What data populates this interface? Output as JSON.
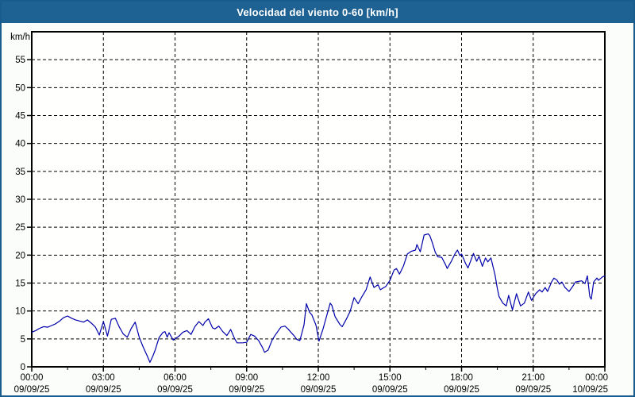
{
  "title_bar": {
    "title": "Velocidad del viento 0-60 [km/h]"
  },
  "colors": {
    "page_border": "#1a5c8e",
    "title_bar_bg": "#1e6293",
    "title_text": "#ffffff",
    "page_bg": "#fafdfa",
    "plot_bg": "#fffffe",
    "axis": "#000000",
    "grid": "#000000",
    "tick_text": "#000000",
    "line": "#0000aa"
  },
  "chart_data": {
    "type": "line",
    "title": "Velocidad del viento 0-60 [km/h]",
    "ylabel": "km/h",
    "xlabel": "",
    "ylim": [
      0,
      60
    ],
    "x_range_hours": 24,
    "grid": "dashed",
    "legend": "none",
    "y_ticks": [
      0,
      5,
      10,
      15,
      20,
      25,
      30,
      35,
      40,
      45,
      50,
      55
    ],
    "x_ticks": [
      {
        "hour": 0,
        "time": "00:00",
        "date": "09/09/25"
      },
      {
        "hour": 3,
        "time": "03:00",
        "date": "09/09/25"
      },
      {
        "hour": 6,
        "time": "06:00",
        "date": "09/09/25"
      },
      {
        "hour": 9,
        "time": "09:00",
        "date": "09/09/25"
      },
      {
        "hour": 12,
        "time": "12:00",
        "date": "09/09/25"
      },
      {
        "hour": 15,
        "time": "15:00",
        "date": "09/09/25"
      },
      {
        "hour": 18,
        "time": "18:00",
        "date": "09/09/25"
      },
      {
        "hour": 21,
        "time": "21:00",
        "date": "09/09/25"
      },
      {
        "hour": 24,
        "time": "00:00",
        "date": "10/09/25"
      }
    ],
    "minor_tick_step_hours": 1.5,
    "series": [
      {
        "name": "Velocidad del viento [km/h]",
        "points": [
          [
            0.0,
            6.2
          ],
          [
            0.17,
            6.5
          ],
          [
            0.33,
            6.9
          ],
          [
            0.5,
            7.2
          ],
          [
            0.67,
            7.1
          ],
          [
            0.83,
            7.4
          ],
          [
            1.0,
            7.7
          ],
          [
            1.17,
            8.2
          ],
          [
            1.33,
            8.8
          ],
          [
            1.5,
            9.1
          ],
          [
            1.67,
            8.7
          ],
          [
            1.83,
            8.4
          ],
          [
            2.0,
            8.2
          ],
          [
            2.17,
            8.0
          ],
          [
            2.33,
            8.4
          ],
          [
            2.5,
            7.8
          ],
          [
            2.67,
            7.1
          ],
          [
            2.83,
            5.7
          ],
          [
            3.0,
            8.1
          ],
          [
            3.17,
            5.5
          ],
          [
            3.33,
            8.5
          ],
          [
            3.5,
            8.7
          ],
          [
            3.67,
            7.1
          ],
          [
            3.83,
            5.9
          ],
          [
            4.0,
            5.3
          ],
          [
            4.17,
            6.9
          ],
          [
            4.33,
            8.0
          ],
          [
            4.5,
            5.3
          ],
          [
            4.67,
            3.5
          ],
          [
            4.83,
            2.0
          ],
          [
            4.95,
            0.8
          ],
          [
            5.08,
            2.0
          ],
          [
            5.17,
            3.0
          ],
          [
            5.33,
            5.2
          ],
          [
            5.5,
            6.2
          ],
          [
            5.58,
            6.3
          ],
          [
            5.67,
            5.3
          ],
          [
            5.75,
            6.1
          ],
          [
            5.92,
            4.8
          ],
          [
            6.0,
            5.0
          ],
          [
            6.17,
            5.5
          ],
          [
            6.33,
            6.2
          ],
          [
            6.5,
            6.5
          ],
          [
            6.67,
            5.8
          ],
          [
            6.83,
            7.2
          ],
          [
            7.0,
            8.1
          ],
          [
            7.17,
            7.4
          ],
          [
            7.25,
            8.0
          ],
          [
            7.4,
            8.6
          ],
          [
            7.57,
            7.0
          ],
          [
            7.67,
            6.8
          ],
          [
            7.83,
            7.3
          ],
          [
            8.0,
            6.3
          ],
          [
            8.17,
            5.6
          ],
          [
            8.33,
            6.7
          ],
          [
            8.5,
            5.0
          ],
          [
            8.6,
            4.3
          ],
          [
            8.83,
            4.3
          ],
          [
            9.0,
            4.4
          ],
          [
            9.17,
            5.8
          ],
          [
            9.33,
            5.5
          ],
          [
            9.5,
            4.7
          ],
          [
            9.67,
            3.4
          ],
          [
            9.75,
            2.6
          ],
          [
            9.9,
            3.0
          ],
          [
            10.07,
            4.8
          ],
          [
            10.17,
            5.5
          ],
          [
            10.33,
            6.5
          ],
          [
            10.43,
            7.1
          ],
          [
            10.6,
            7.3
          ],
          [
            10.73,
            6.8
          ],
          [
            10.83,
            6.3
          ],
          [
            11.0,
            5.5
          ],
          [
            11.1,
            4.9
          ],
          [
            11.23,
            4.7
          ],
          [
            11.4,
            7.5
          ],
          [
            11.5,
            11.3
          ],
          [
            11.63,
            9.8
          ],
          [
            11.73,
            9.3
          ],
          [
            11.9,
            7.5
          ],
          [
            12.03,
            4.6
          ],
          [
            12.2,
            6.8
          ],
          [
            12.33,
            8.8
          ],
          [
            12.5,
            11.4
          ],
          [
            12.57,
            11.0
          ],
          [
            12.7,
            9.0
          ],
          [
            12.9,
            7.6
          ],
          [
            13.0,
            7.2
          ],
          [
            13.17,
            8.5
          ],
          [
            13.33,
            9.9
          ],
          [
            13.5,
            12.4
          ],
          [
            13.67,
            11.3
          ],
          [
            13.83,
            12.6
          ],
          [
            14.0,
            13.8
          ],
          [
            14.17,
            16.1
          ],
          [
            14.33,
            14.2
          ],
          [
            14.5,
            14.7
          ],
          [
            14.6,
            13.8
          ],
          [
            14.83,
            14.4
          ],
          [
            15.0,
            15.5
          ],
          [
            15.17,
            17.3
          ],
          [
            15.27,
            17.6
          ],
          [
            15.4,
            16.6
          ],
          [
            15.57,
            18.1
          ],
          [
            15.73,
            20.2
          ],
          [
            15.9,
            20.7
          ],
          [
            16.07,
            20.9
          ],
          [
            16.13,
            21.9
          ],
          [
            16.27,
            20.6
          ],
          [
            16.43,
            23.6
          ],
          [
            16.6,
            23.8
          ],
          [
            16.67,
            23.5
          ],
          [
            16.77,
            22.3
          ],
          [
            16.9,
            20.5
          ],
          [
            17.0,
            19.7
          ],
          [
            17.17,
            19.6
          ],
          [
            17.33,
            18.3
          ],
          [
            17.4,
            17.6
          ],
          [
            17.57,
            18.9
          ],
          [
            17.73,
            20.3
          ],
          [
            17.83,
            20.9
          ],
          [
            17.93,
            19.9
          ],
          [
            18.0,
            20.2
          ],
          [
            18.17,
            18.5
          ],
          [
            18.27,
            17.7
          ],
          [
            18.5,
            20.3
          ],
          [
            18.63,
            18.9
          ],
          [
            18.73,
            19.8
          ],
          [
            18.87,
            18.0
          ],
          [
            19.0,
            19.5
          ],
          [
            19.1,
            18.8
          ],
          [
            19.23,
            19.5
          ],
          [
            19.4,
            16.5
          ],
          [
            19.5,
            14.0
          ],
          [
            19.57,
            12.6
          ],
          [
            19.73,
            11.4
          ],
          [
            19.87,
            10.9
          ],
          [
            19.97,
            12.8
          ],
          [
            20.13,
            10.2
          ],
          [
            20.3,
            13.1
          ],
          [
            20.47,
            10.9
          ],
          [
            20.63,
            11.4
          ],
          [
            20.8,
            13.4
          ],
          [
            20.93,
            11.9
          ],
          [
            21.1,
            13.1
          ],
          [
            21.27,
            13.8
          ],
          [
            21.37,
            13.4
          ],
          [
            21.5,
            14.2
          ],
          [
            21.6,
            13.5
          ],
          [
            21.77,
            15.2
          ],
          [
            21.87,
            15.9
          ],
          [
            22.0,
            15.5
          ],
          [
            22.1,
            14.8
          ],
          [
            22.2,
            15.2
          ],
          [
            22.33,
            14.2
          ],
          [
            22.5,
            13.5
          ],
          [
            22.67,
            14.5
          ],
          [
            22.77,
            15.2
          ],
          [
            22.9,
            15.3
          ],
          [
            23.03,
            15.4
          ],
          [
            23.17,
            14.9
          ],
          [
            23.27,
            16.3
          ],
          [
            23.37,
            12.6
          ],
          [
            23.43,
            12.1
          ],
          [
            23.53,
            15.2
          ],
          [
            23.67,
            15.9
          ],
          [
            23.73,
            15.5
          ],
          [
            23.9,
            16.1
          ],
          [
            24.0,
            16.3
          ]
        ]
      }
    ]
  }
}
